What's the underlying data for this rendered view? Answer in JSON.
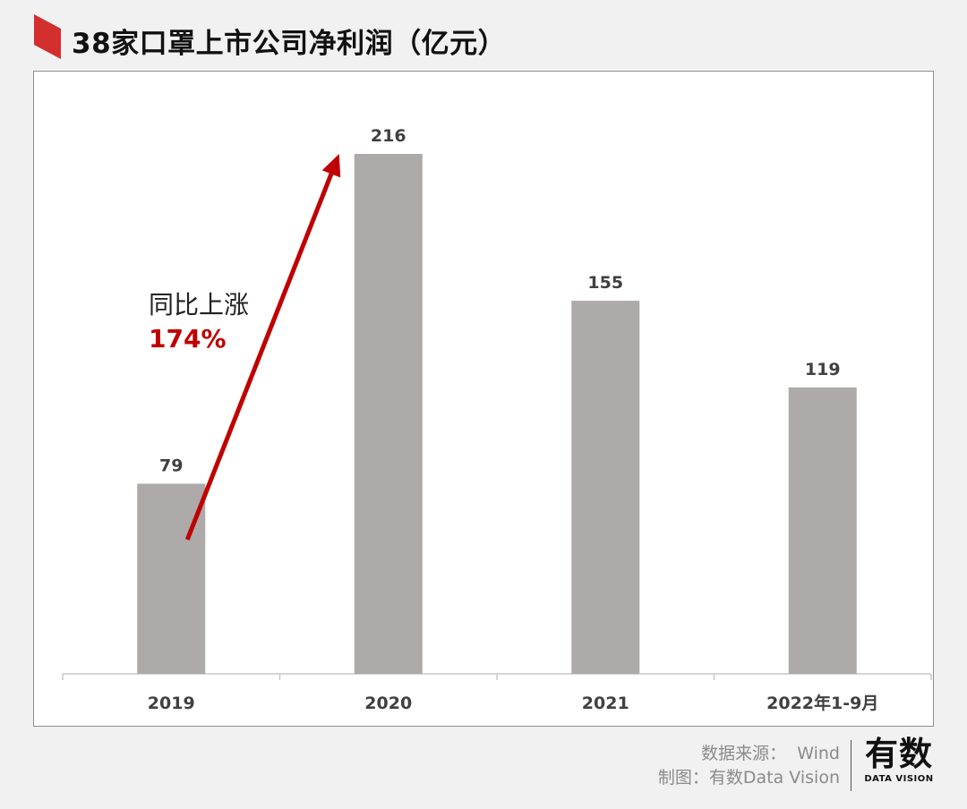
{
  "header": {
    "title": "38家口罩上市公司净利润（亿元）",
    "accent_color": "#d32f2f"
  },
  "annotation": {
    "label": "同比上涨",
    "percent": "174%",
    "arrow_color": "#c00000"
  },
  "chart_data": {
    "type": "bar",
    "categories": [
      "2019",
      "2020",
      "2021",
      "2022年1-9月"
    ],
    "values": [
      79,
      216,
      155,
      119
    ],
    "value_labels": [
      "79",
      "216",
      "155",
      "119"
    ],
    "bar_color": "#adaaa9",
    "ylim": [
      0,
      240
    ],
    "grid": false,
    "title": "38家口罩上市公司净利润（亿元）"
  },
  "footer": {
    "source_label": "数据来源：",
    "source_value": "Wind",
    "maker_label": "制图：",
    "maker_value": "有数Data Vision"
  },
  "logo": {
    "main": "有数",
    "sub": "DATA VISION"
  }
}
